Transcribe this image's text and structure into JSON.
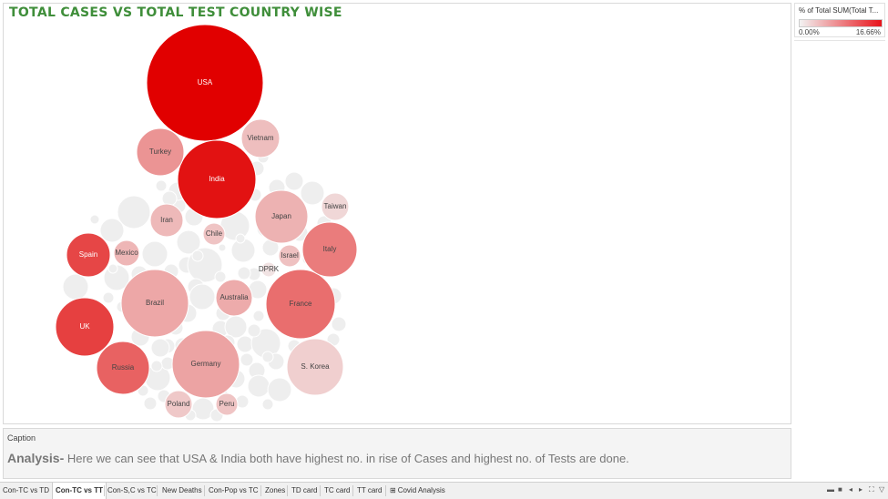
{
  "viz": {
    "title": "Total Cases vs Total Test Country Wise"
  },
  "legend": {
    "title": "% of Total SUM(Total T...",
    "min_label": "0.00%",
    "max_label": "16.66%",
    "color_low": "#f2f2f2",
    "color_high": "#e8131a"
  },
  "chart_data": {
    "type": "packed-bubble",
    "size_measure": "",
    "color_measure": "% of Total SUM(Total T...",
    "color_range": [
      "0.00%",
      "16.66%"
    ],
    "labeled_bubbles": [
      {
        "name": "USA",
        "color_pct": 16.66
      },
      {
        "name": "India",
        "color_pct": 14.5
      },
      {
        "name": "UK",
        "color_pct": 9.5
      },
      {
        "name": "Spain",
        "color_pct": 9.0
      },
      {
        "name": "Russia",
        "color_pct": 6.5
      },
      {
        "name": "France",
        "color_pct": 5.5
      },
      {
        "name": "Italy",
        "color_pct": 4.5
      },
      {
        "name": "Turkey",
        "color_pct": 3.0
      },
      {
        "name": "Brazil",
        "color_pct": 2.0
      },
      {
        "name": "Germany",
        "color_pct": 2.2
      },
      {
        "name": "Japan",
        "color_pct": 1.5
      },
      {
        "name": "Vietnam",
        "color_pct": 1.0
      },
      {
        "name": "Iran",
        "color_pct": 1.2
      },
      {
        "name": "Australia",
        "color_pct": 1.8
      },
      {
        "name": "S. Korea",
        "color_pct": 0.5
      },
      {
        "name": "Taiwan",
        "color_pct": 0.3
      },
      {
        "name": "Chile",
        "color_pct": 0.8
      },
      {
        "name": "Mexico",
        "color_pct": 1.3
      },
      {
        "name": "Israel",
        "color_pct": 0.9
      },
      {
        "name": "DPRK",
        "color_pct": 0.1
      },
      {
        "name": "Poland",
        "color_pct": 0.7
      },
      {
        "name": "Peru",
        "color_pct": 0.8
      }
    ]
  },
  "caption": {
    "label": "Caption",
    "lead": "Analysis-",
    "text": " Here we can see that USA & India both have highest no. in rise of Cases and highest no. of  Tests are done."
  },
  "tabs": [
    {
      "label": "Con-TC vs TD",
      "active": false
    },
    {
      "label": "Con-TC vs TT",
      "active": true
    },
    {
      "label": "Con-S,C vs TC",
      "active": false
    },
    {
      "label": "New Deaths",
      "active": false
    },
    {
      "label": "Con-Pop vs TC",
      "active": false
    },
    {
      "label": "Zones",
      "active": false
    },
    {
      "label": "TD card",
      "active": false
    },
    {
      "label": "TC card",
      "active": false
    },
    {
      "label": "TT card",
      "active": false
    },
    {
      "label": "Covid Analysis",
      "active": false,
      "icon": "dashboard-grid-icon"
    }
  ],
  "nav_controls": [
    "show-filmstrip-icon",
    "show-tabs-icon",
    "first-sheet-icon",
    "previous-sheet-icon",
    "fullscreen-icon",
    "present-mode-icon"
  ]
}
